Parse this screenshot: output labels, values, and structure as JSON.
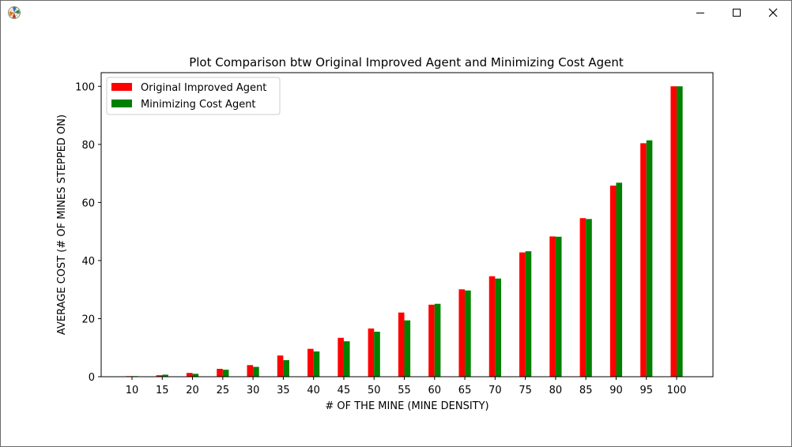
{
  "window": {
    "icon": "matplotlib-figure-icon",
    "controls": [
      "minimize-icon",
      "maximize-icon",
      "close-icon"
    ]
  },
  "chart_data": {
    "type": "bar",
    "title": "Plot Comparison btw Original Improved Agent and Minimizing Cost Agent",
    "xlabel": "# OF THE MINE (MINE DENSITY)",
    "ylabel": "AVERAGE COST (# OF MINES STEPPED ON)",
    "categories": [
      "10",
      "15",
      "20",
      "25",
      "30",
      "35",
      "40",
      "45",
      "50",
      "55",
      "60",
      "65",
      "70",
      "75",
      "80",
      "85",
      "90",
      "95",
      "100"
    ],
    "series": [
      {
        "name": "Original Improved Agent",
        "color": "#ff0000",
        "values": [
          0.2,
          0.5,
          1.3,
          2.7,
          4.0,
          7.3,
          9.6,
          13.4,
          16.6,
          22.1,
          24.8,
          30.1,
          34.6,
          42.8,
          48.3,
          54.6,
          65.8,
          80.4,
          100.0
        ]
      },
      {
        "name": "Minimizing Cost Agent",
        "color": "#008000",
        "values": [
          0.2,
          0.7,
          1.0,
          2.4,
          3.4,
          5.7,
          8.7,
          12.2,
          15.5,
          19.4,
          25.1,
          29.7,
          33.8,
          43.2,
          48.2,
          54.3,
          66.8,
          81.4,
          100.0
        ]
      }
    ],
    "ylim": [
      0,
      104.7
    ],
    "yticks": [
      0,
      20,
      40,
      60,
      80,
      100
    ],
    "legend": "top-left",
    "grid": false
  }
}
